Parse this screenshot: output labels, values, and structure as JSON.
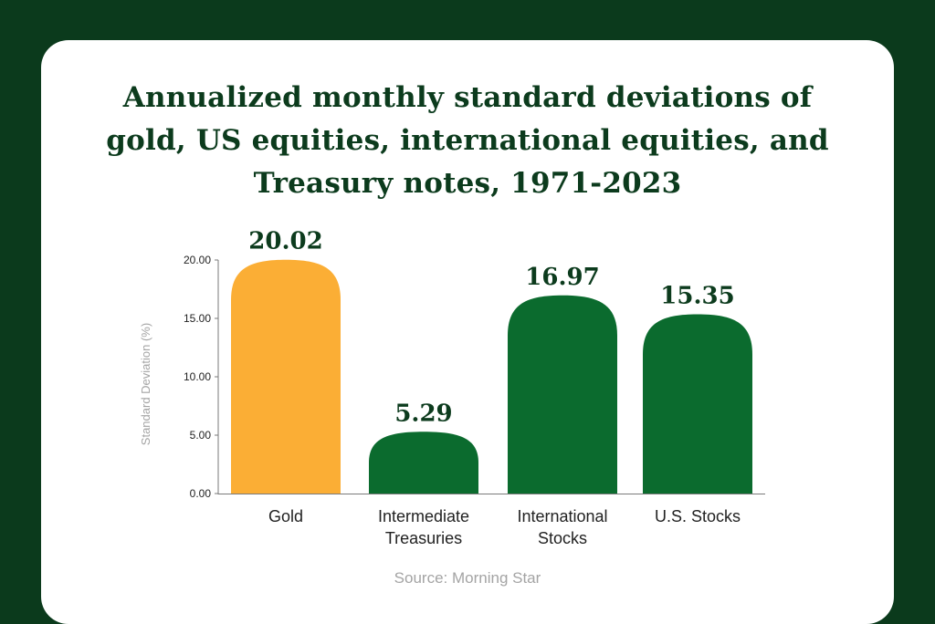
{
  "title_lines": [
    "Annualized monthly standard deviations of",
    "gold, US equities, international equities, and",
    "Treasury notes, 1971-2023"
  ],
  "source": "Source: Morning Star",
  "colors": {
    "background": "#0b3a1c",
    "card": "#ffffff",
    "highlight_bar": "#fbae35",
    "bar": "#0b6b2e",
    "value_label": "#0c3b1d",
    "axis_text": "#222222",
    "axis_title": "#a4a4a4"
  },
  "chart_data": {
    "type": "bar",
    "categories": [
      [
        "Gold"
      ],
      [
        "Intermediate",
        "Treasuries"
      ],
      [
        "International",
        "Stocks"
      ],
      [
        "U.S. Stocks"
      ]
    ],
    "values": [
      20.02,
      5.29,
      16.97,
      15.35
    ],
    "value_labels": [
      "20.02",
      "5.29",
      "16.97",
      "15.35"
    ],
    "highlight_index": 0,
    "ylabel": "Standard Deviation (%)",
    "ylim": [
      0,
      20
    ],
    "yticks": [
      0,
      5,
      10,
      15,
      20
    ],
    "ytick_labels": [
      "0.00",
      "5.00",
      "10.00",
      "15.00",
      "20.00"
    ],
    "grid": false
  }
}
